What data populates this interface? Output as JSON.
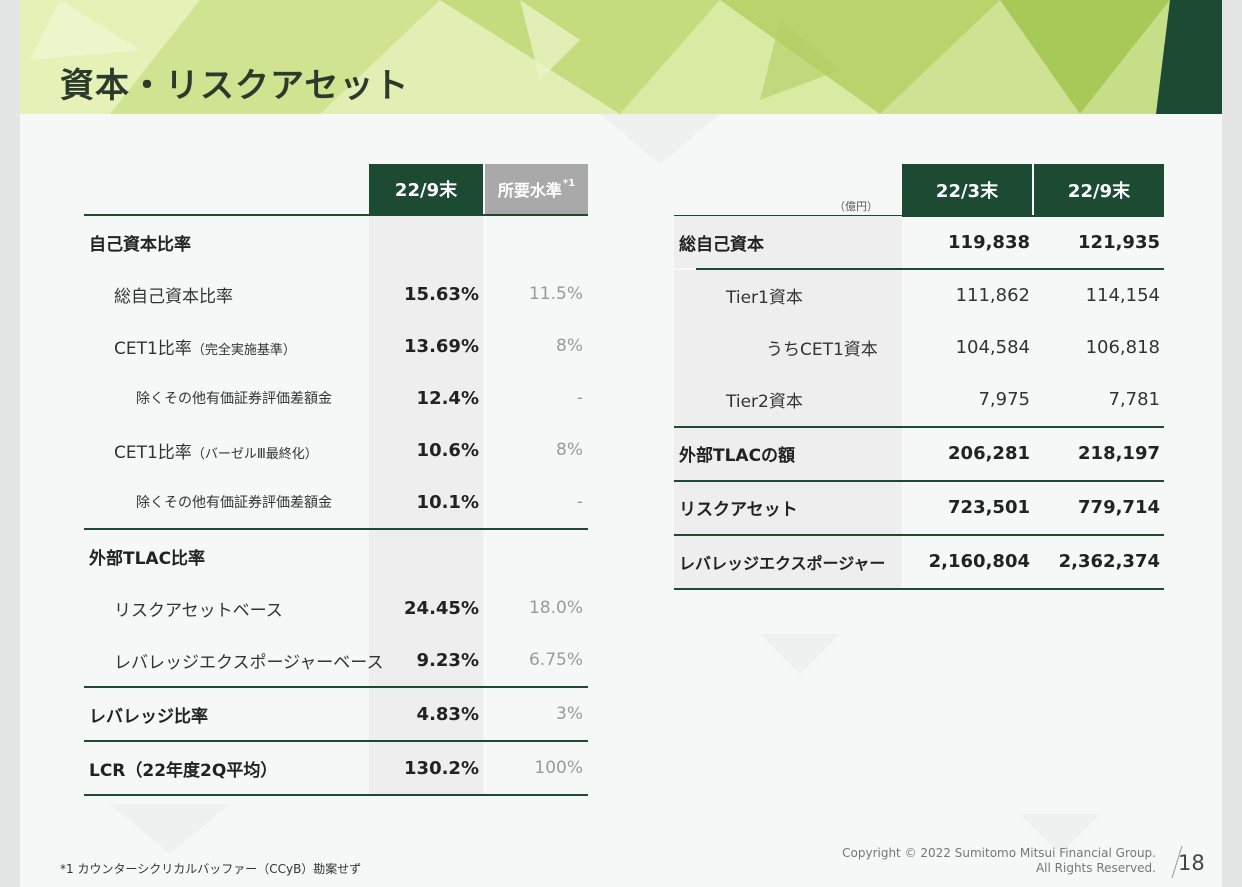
{
  "header": {
    "title": "資本・リスクアセット"
  },
  "left_table": {
    "col1": "22/9末",
    "col2": "所要水準",
    "col2_note": "*1",
    "rows": [
      {
        "label": "自己資本比率",
        "value": "",
        "required": ""
      },
      {
        "label": "総自己資本比率",
        "value": "15.63%",
        "required": "11.5%"
      },
      {
        "label": "CET1比率",
        "label_note": "（完全実施基準）",
        "value": "13.69%",
        "required": "8%"
      },
      {
        "label": "除くその他有価証券評価差額金",
        "value": "12.4%",
        "required": "-"
      },
      {
        "label": "CET1比率",
        "label_note": "（バーゼルⅢ最終化）",
        "value": "10.6%",
        "required": "8%"
      },
      {
        "label": "除くその他有価証券評価差額金",
        "value": "10.1%",
        "required": "-"
      },
      {
        "label": "外部TLAC比率",
        "value": "",
        "required": ""
      },
      {
        "label": "リスクアセットベース",
        "value": "24.45%",
        "required": "18.0%"
      },
      {
        "label": "レバレッジエクスポージャーベース",
        "value": "9.23%",
        "required": "6.75%"
      },
      {
        "label": "レバレッジ比率",
        "value": "4.83%",
        "required": "3%"
      },
      {
        "label": "LCR（22年度2Q平均）",
        "value": "130.2%",
        "required": "100%"
      }
    ]
  },
  "right_table": {
    "unit": "（億円）",
    "col1": "22/3末",
    "col2": "22/9末",
    "rows": [
      {
        "label": "総自己資本",
        "v1": "119,838",
        "v2": "121,935"
      },
      {
        "label": "Tier1資本",
        "v1": "111,862",
        "v2": "114,154"
      },
      {
        "label": "うちCET1資本",
        "v1": "104,584",
        "v2": "106,818"
      },
      {
        "label": "Tier2資本",
        "v1": "7,975",
        "v2": "7,781"
      },
      {
        "label": "外部TLACの額",
        "v1": "206,281",
        "v2": "218,197"
      },
      {
        "label": "リスクアセット",
        "v1": "723,501",
        "v2": "779,714"
      },
      {
        "label": "レバレッジエクスポージャー",
        "v1": "2,160,804",
        "v2": "2,362,374"
      }
    ]
  },
  "footer": {
    "footnote": "*1 カウンターシクリカルバッファー（CCyB）勘案せず",
    "copyright_line1": "Copyright © 2022 Sumitomo Mitsui Financial Group.",
    "copyright_line2": "All Rights Reserved.",
    "page_number": "18"
  },
  "colors": {
    "header_green": "#1c4a32",
    "required_gray": "#a9a9a9",
    "banner_light": "#d7e9a4"
  }
}
